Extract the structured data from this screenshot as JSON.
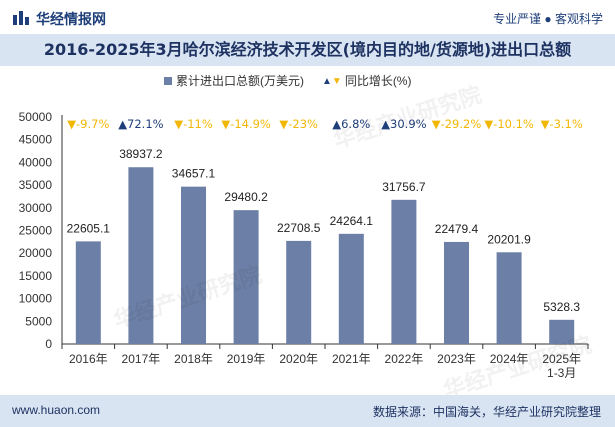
{
  "header": {
    "brand": "华经情报网",
    "tagline": "专业严谨 ● 客观科学",
    "logo_icon": "bar-chart-logo-icon"
  },
  "title": "2016-2025年3月哈尔滨经济技术开发区(境内目的地/货源地)进出口总额",
  "legend": {
    "bar_label": "累计进出口总额(万美元)",
    "line_label": "同比增长(%)"
  },
  "footer": {
    "website": "www.huaon.com",
    "source": "数据来源：中国海关，华经产业研究院整理"
  },
  "watermark": "华经产业研究院",
  "colors": {
    "bar": "#6c7fa6",
    "up": "#1f3f7a",
    "down": "#f2b705",
    "header_bg": "#d9e4f3"
  },
  "chart_data": {
    "type": "bar",
    "categories": [
      "2016年",
      "2017年",
      "2018年",
      "2019年",
      "2020年",
      "2021年",
      "2022年",
      "2023年",
      "2024年",
      "2025年\n1-3月"
    ],
    "series": [
      {
        "name": "累计进出口总额(万美元)",
        "values": [
          22605.1,
          38937.2,
          34657.1,
          29480.2,
          22708.5,
          24264.1,
          31756.7,
          22479.4,
          20201.9,
          5328.3
        ],
        "labels": [
          "22605.1",
          "38937.2",
          "34657.1",
          "29480.2",
          "22708.5",
          "24264.1",
          "31756.7",
          "22479.4",
          "20201.9",
          "5328.3"
        ]
      },
      {
        "name": "同比增长(%)",
        "values": [
          -9.7,
          72.1,
          -11,
          -14.9,
          -23,
          6.8,
          30.9,
          -29.2,
          -10.1,
          -3.1
        ],
        "labels": [
          "-9.7%",
          "72.1%",
          "-11%",
          "-14.9%",
          "-23%",
          "6.8%",
          "30.9%",
          "-29.2%",
          "-10.1%",
          "-3.1%"
        ]
      }
    ],
    "y_ticks": [
      "0",
      "5000",
      "10000",
      "15000",
      "20000",
      "25000",
      "30000",
      "35000",
      "40000",
      "45000",
      "50000"
    ],
    "ylim": [
      0,
      50000
    ]
  }
}
